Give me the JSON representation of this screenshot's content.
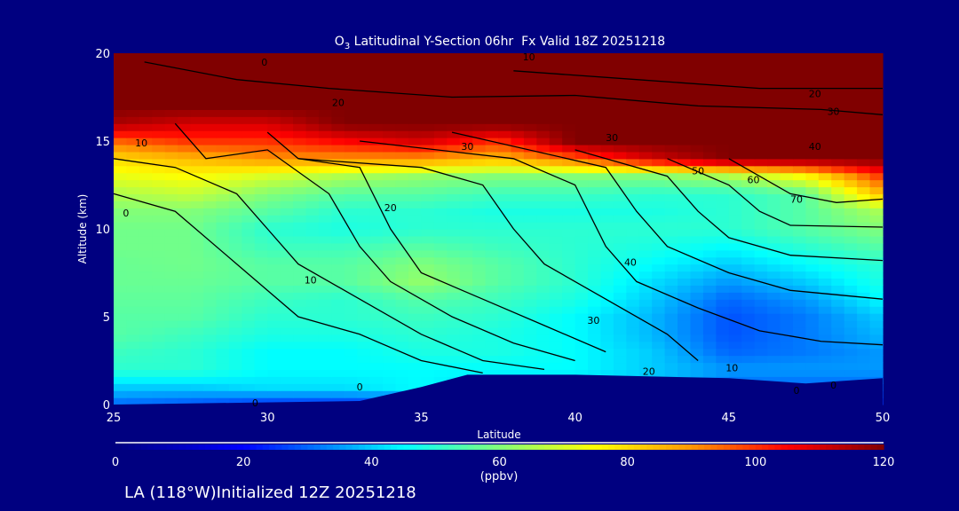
{
  "chart_data": {
    "type": "heatmap",
    "title_prefix": "O",
    "title_sub": "3",
    "title": " Latitudinal Y-Section 06hr  Fx Valid 18Z 20251218",
    "xlabel": "Latitude",
    "ylabel": "Altitude (km)",
    "xlim": [
      25,
      50
    ],
    "ylim": [
      0,
      20
    ],
    "xticks": [
      "25",
      "30",
      "35",
      "40",
      "45",
      "50"
    ],
    "yticks": [
      "0",
      "5",
      "10",
      "15",
      "20"
    ],
    "lat": [
      25,
      27.5,
      30,
      32.5,
      35,
      37.5,
      40,
      42.5,
      45,
      47.5,
      50
    ],
    "alt": [
      0,
      1,
      2,
      3,
      4,
      5,
      6,
      7,
      8,
      9,
      10,
      11,
      12,
      13,
      14,
      15,
      16,
      17,
      18,
      19,
      20
    ],
    "values": [
      [
        30,
        28,
        25,
        25,
        25,
        25,
        25,
        25,
        25,
        25,
        25
      ],
      [
        40,
        40,
        42,
        42,
        45,
        40,
        40,
        38,
        30,
        30,
        30
      ],
      [
        50,
        50,
        45,
        45,
        45,
        45,
        45,
        40,
        35,
        35,
        35
      ],
      [
        52,
        50,
        45,
        45,
        48,
        48,
        45,
        40,
        30,
        32,
        35
      ],
      [
        55,
        52,
        48,
        48,
        50,
        48,
        45,
        38,
        28,
        32,
        38
      ],
      [
        55,
        55,
        50,
        50,
        52,
        50,
        45,
        38,
        28,
        32,
        40
      ],
      [
        56,
        56,
        52,
        50,
        55,
        52,
        48,
        40,
        30,
        35,
        45
      ],
      [
        57,
        57,
        55,
        55,
        62,
        55,
        50,
        42,
        35,
        40,
        48
      ],
      [
        57,
        58,
        55,
        55,
        60,
        55,
        50,
        45,
        40,
        45,
        50
      ],
      [
        58,
        58,
        52,
        52,
        55,
        52,
        50,
        48,
        45,
        50,
        55
      ],
      [
        58,
        58,
        50,
        48,
        50,
        50,
        50,
        50,
        50,
        55,
        60
      ],
      [
        60,
        60,
        55,
        50,
        50,
        48,
        48,
        48,
        50,
        55,
        65
      ],
      [
        65,
        68,
        60,
        55,
        55,
        52,
        52,
        50,
        50,
        55,
        85
      ],
      [
        72,
        75,
        70,
        65,
        62,
        60,
        60,
        60,
        65,
        75,
        100
      ],
      [
        80,
        85,
        90,
        90,
        90,
        85,
        95,
        110,
        120,
        120,
        120
      ],
      [
        95,
        100,
        100,
        105,
        110,
        100,
        120,
        120,
        120,
        120,
        120
      ],
      [
        115,
        110,
        110,
        120,
        120,
        120,
        120,
        120,
        120,
        120,
        120
      ],
      [
        120,
        120,
        120,
        120,
        120,
        120,
        120,
        120,
        120,
        120,
        120
      ],
      [
        120,
        120,
        120,
        120,
        120,
        120,
        120,
        120,
        120,
        120,
        120
      ],
      [
        120,
        120,
        120,
        120,
        120,
        120,
        120,
        120,
        120,
        120,
        120
      ],
      [
        120,
        120,
        120,
        120,
        120,
        120,
        120,
        120,
        120,
        120,
        120
      ]
    ],
    "terrain": {
      "lat": [
        25,
        33,
        35,
        36.5,
        40,
        45,
        47.5,
        50
      ],
      "alt": [
        0,
        0.2,
        1.0,
        1.7,
        1.7,
        1.5,
        1.2,
        1.5
      ]
    },
    "contour_labels": [
      {
        "text": "0",
        "lat": 29.9,
        "alt": 19.3
      },
      {
        "text": "10",
        "lat": 38.5,
        "alt": 19.6
      },
      {
        "text": "20",
        "lat": 47.8,
        "alt": 17.5
      },
      {
        "text": "30",
        "lat": 48.4,
        "alt": 16.5
      },
      {
        "text": "20",
        "lat": 32.3,
        "alt": 17
      },
      {
        "text": "30",
        "lat": 36.5,
        "alt": 14.5
      },
      {
        "text": "30",
        "lat": 41.2,
        "alt": 15
      },
      {
        "text": "40",
        "lat": 47.8,
        "alt": 14.5
      },
      {
        "text": "50",
        "lat": 44,
        "alt": 13.1
      },
      {
        "text": "60",
        "lat": 45.8,
        "alt": 12.6
      },
      {
        "text": "70",
        "lat": 47.2,
        "alt": 11.5
      },
      {
        "text": "10",
        "lat": 25.9,
        "alt": 14.7
      },
      {
        "text": "0",
        "lat": 25.4,
        "alt": 10.7
      },
      {
        "text": "20",
        "lat": 34,
        "alt": 11
      },
      {
        "text": "10",
        "lat": 31.4,
        "alt": 6.9
      },
      {
        "text": "40",
        "lat": 41.8,
        "alt": 7.9
      },
      {
        "text": "30",
        "lat": 40.6,
        "alt": 4.6
      },
      {
        "text": "20",
        "lat": 42.4,
        "alt": 1.7
      },
      {
        "text": "10",
        "lat": 45.1,
        "alt": 1.9
      },
      {
        "text": "0",
        "lat": 33,
        "alt": 0.8
      },
      {
        "text": "0",
        "lat": 29.6,
        "alt": -0.1
      },
      {
        "text": "0",
        "lat": 47.2,
        "alt": 0.6
      },
      {
        "text": "0",
        "lat": 48.4,
        "alt": 0.9
      }
    ],
    "contours": [
      [
        [
          25,
          12
        ],
        [
          27,
          11
        ],
        [
          29,
          8
        ],
        [
          31,
          5
        ],
        [
          33,
          4
        ],
        [
          35,
          2.5
        ],
        [
          37,
          1.8
        ]
      ],
      [
        [
          25,
          14
        ],
        [
          27,
          13.5
        ],
        [
          29,
          12
        ],
        [
          30,
          10
        ],
        [
          31,
          8
        ],
        [
          33,
          6
        ],
        [
          35,
          4
        ],
        [
          37,
          2.5
        ],
        [
          39,
          2
        ]
      ],
      [
        [
          27,
          16
        ],
        [
          28,
          14
        ],
        [
          30,
          14.5
        ],
        [
          32,
          12
        ],
        [
          33,
          9
        ],
        [
          34,
          7
        ],
        [
          36,
          5
        ],
        [
          38,
          3.5
        ],
        [
          40,
          2.5
        ]
      ],
      [
        [
          30,
          15.5
        ],
        [
          31,
          14
        ],
        [
          33,
          13.5
        ],
        [
          34,
          10
        ],
        [
          35,
          7.5
        ],
        [
          37,
          6
        ],
        [
          39,
          4.5
        ],
        [
          41,
          3
        ]
      ],
      [
        [
          31,
          14
        ],
        [
          35,
          13.5
        ],
        [
          37,
          12.5
        ],
        [
          38,
          10
        ],
        [
          39,
          8
        ],
        [
          41,
          6
        ],
        [
          43,
          4
        ],
        [
          44,
          2.5
        ]
      ],
      [
        [
          33,
          15
        ],
        [
          38,
          14
        ],
        [
          40,
          12.5
        ],
        [
          41,
          9
        ],
        [
          42,
          7
        ],
        [
          44,
          5.5
        ],
        [
          46,
          4.2
        ],
        [
          48,
          3.6
        ],
        [
          50,
          3.4
        ]
      ],
      [
        [
          36,
          15.5
        ],
        [
          41,
          13.5
        ],
        [
          42,
          11
        ],
        [
          43,
          9
        ],
        [
          45,
          7.5
        ],
        [
          47,
          6.5
        ],
        [
          50,
          6
        ]
      ],
      [
        [
          40,
          14.5
        ],
        [
          43,
          13
        ],
        [
          44,
          11
        ],
        [
          45,
          9.5
        ],
        [
          47,
          8.5
        ],
        [
          50,
          8.2
        ]
      ],
      [
        [
          43,
          14
        ],
        [
          45,
          12.5
        ],
        [
          46,
          11
        ],
        [
          47,
          10.2
        ],
        [
          50,
          10.1
        ]
      ],
      [
        [
          45,
          14
        ],
        [
          47,
          12
        ],
        [
          48.5,
          11.5
        ],
        [
          50,
          11.7
        ]
      ],
      [
        [
          26,
          19.5
        ],
        [
          29,
          18.5
        ],
        [
          32,
          18
        ],
        [
          36,
          17.5
        ],
        [
          40,
          17.6
        ],
        [
          44,
          17
        ],
        [
          48,
          16.8
        ],
        [
          50,
          16.5
        ]
      ],
      [
        [
          38,
          19
        ],
        [
          42,
          18.5
        ],
        [
          46,
          18
        ],
        [
          50,
          18
        ]
      ]
    ]
  },
  "colorbar": {
    "ticks": [
      "0",
      "20",
      "40",
      "60",
      "80",
      "100",
      "120"
    ],
    "unit": "(ppbv)",
    "min": 0,
    "max": 120
  },
  "footer": "LA (118°W)Initialized 12Z 20251218"
}
